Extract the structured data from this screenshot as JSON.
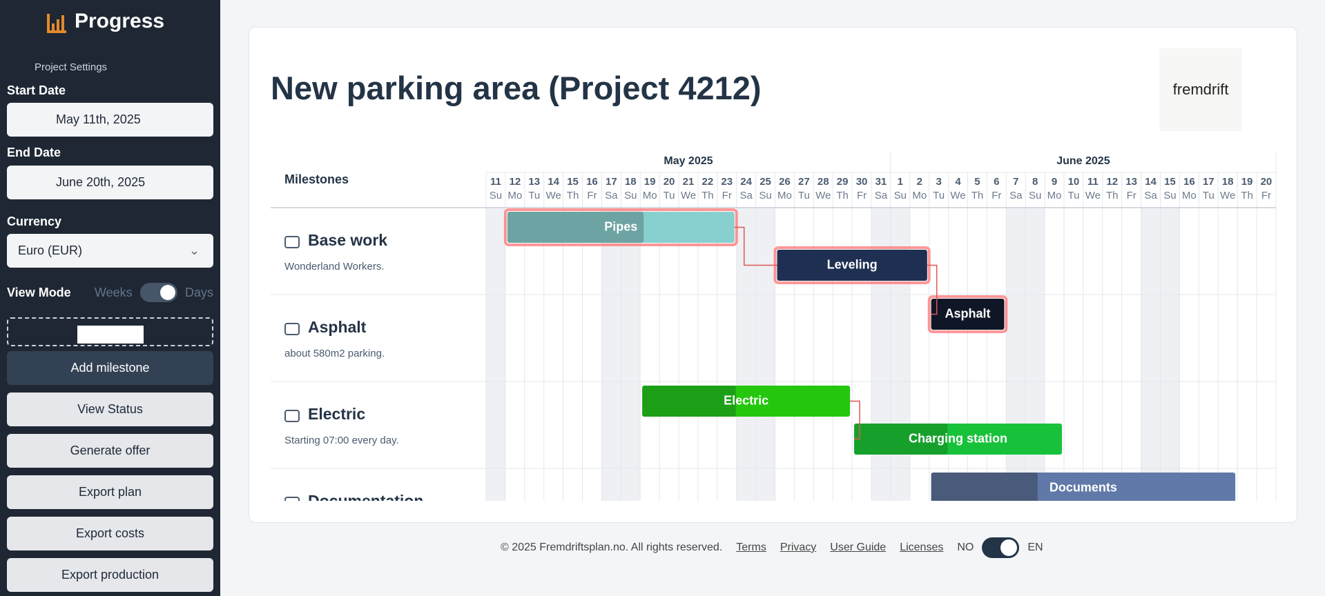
{
  "sidebar": {
    "brand": "Progress",
    "settings_label": "Project Settings",
    "start_date_label": "Start Date",
    "start_date": "May 11th, 2025",
    "end_date_label": "End Date",
    "end_date": "June 20th, 2025",
    "currency_label": "Currency",
    "currency": "Euro (EUR)",
    "view_mode_label": "View Mode",
    "view_weeks": "Weeks",
    "view_days": "Days",
    "buttons": [
      "Add milestone",
      "View Status",
      "Generate offer",
      "Export plan",
      "Export costs",
      "Export production"
    ]
  },
  "main": {
    "title": "New parking area (Project 4212)",
    "logo": "fremdrift"
  },
  "gantt": {
    "milestones_header": "Milestones",
    "months": [
      "May 2025",
      "June 2025"
    ],
    "days": [
      {
        "day": "11",
        "weekday": "Su"
      },
      {
        "day": "12",
        "weekday": "Mo"
      },
      {
        "day": "13",
        "weekday": "Tu"
      },
      {
        "day": "14",
        "weekday": "We"
      },
      {
        "day": "15",
        "weekday": "Th"
      },
      {
        "day": "16",
        "weekday": "Fr"
      },
      {
        "day": "17",
        "weekday": "Sa"
      },
      {
        "day": "18",
        "weekday": "Su"
      },
      {
        "day": "19",
        "weekday": "Mo"
      },
      {
        "day": "20",
        "weekday": "Tu"
      },
      {
        "day": "21",
        "weekday": "We"
      },
      {
        "day": "22",
        "weekday": "Th"
      },
      {
        "day": "23",
        "weekday": "Fr"
      },
      {
        "day": "24",
        "weekday": "Sa"
      },
      {
        "day": "25",
        "weekday": "Su"
      },
      {
        "day": "26",
        "weekday": "Mo"
      },
      {
        "day": "27",
        "weekday": "Tu"
      },
      {
        "day": "28",
        "weekday": "We"
      },
      {
        "day": "29",
        "weekday": "Th"
      },
      {
        "day": "30",
        "weekday": "Fr"
      },
      {
        "day": "31",
        "weekday": "Sa"
      },
      {
        "day": "1",
        "weekday": "Su"
      },
      {
        "day": "2",
        "weekday": "Mo"
      },
      {
        "day": "3",
        "weekday": "Tu"
      },
      {
        "day": "4",
        "weekday": "We"
      },
      {
        "day": "5",
        "weekday": "Th"
      },
      {
        "day": "6",
        "weekday": "Fr"
      },
      {
        "day": "7",
        "weekday": "Sa"
      },
      {
        "day": "8",
        "weekday": "Su"
      },
      {
        "day": "9",
        "weekday": "Mo"
      },
      {
        "day": "10",
        "weekday": "Tu"
      },
      {
        "day": "11",
        "weekday": "We"
      },
      {
        "day": "12",
        "weekday": "Th"
      },
      {
        "day": "13",
        "weekday": "Fr"
      },
      {
        "day": "14",
        "weekday": "Sa"
      },
      {
        "day": "15",
        "weekday": "Su"
      },
      {
        "day": "16",
        "weekday": "Mo"
      },
      {
        "day": "17",
        "weekday": "Tu"
      },
      {
        "day": "18",
        "weekday": "We"
      },
      {
        "day": "19",
        "weekday": "Th"
      },
      {
        "day": "20",
        "weekday": "Fr"
      }
    ],
    "milestones": [
      {
        "name": "Base work",
        "description": "Wonderland Workers."
      },
      {
        "name": "Asphalt",
        "description": "about 580m2 parking."
      },
      {
        "name": "Electric",
        "description": "Starting 07:00 every day."
      },
      {
        "name": "Documentation",
        "description": ""
      }
    ],
    "tasks": [
      "Pipes",
      "Leveling",
      "Asphalt",
      "Electric",
      "Charging station",
      "Documents"
    ]
  },
  "footer": {
    "copyright": "© 2025 Fremdriftsplan.no. All rights reserved.",
    "links": [
      "Terms",
      "Privacy",
      "User Guide",
      "Licenses"
    ],
    "lang_no": "NO",
    "lang_en": "EN"
  }
}
